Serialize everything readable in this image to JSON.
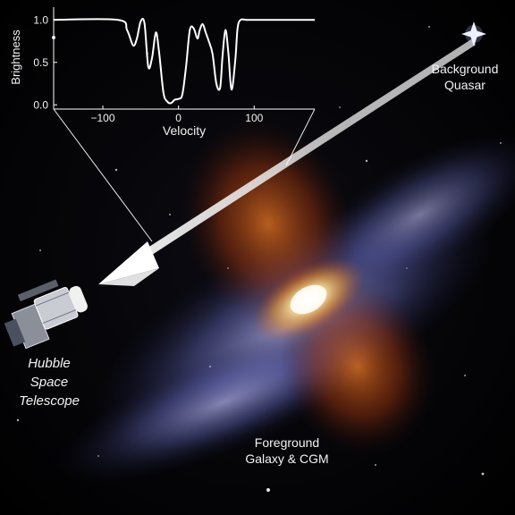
{
  "labels": {
    "quasar": [
      "Background",
      "Quasar"
    ],
    "galaxy": [
      "Foreground",
      "Galaxy & CGM"
    ],
    "telescope": [
      "Hubble",
      "Space",
      "Telescope"
    ]
  },
  "chart_data": {
    "type": "line",
    "xlabel": "Velocity",
    "ylabel": "Brightness",
    "xlim": [
      -165,
      180
    ],
    "ylim": [
      -0.05,
      1.15
    ],
    "x_ticks": [
      -100,
      0,
      100
    ],
    "x_tick_labels": [
      "−100",
      "0",
      "100"
    ],
    "y_ticks": [
      0.0,
      0.5,
      1.0
    ],
    "y_tick_labels": [
      "0.0",
      "0.5",
      "1.0"
    ],
    "grid": false,
    "line_color": "#ffffff",
    "series": [
      {
        "x": [
          -165,
          -80,
          -68,
          -60,
          -55,
          -50,
          -45,
          -40,
          -35,
          -30,
          -26,
          -20,
          -15,
          -10,
          -5,
          0,
          5,
          10,
          15,
          20,
          25,
          28,
          32,
          36,
          40,
          45,
          50,
          55,
          58,
          62,
          66,
          70,
          75,
          78,
          82,
          90,
          100,
          180
        ],
        "y": [
          1.0,
          1.0,
          0.88,
          0.7,
          0.78,
          0.98,
          0.96,
          0.45,
          0.55,
          0.85,
          0.65,
          0.15,
          0.04,
          0.02,
          0.06,
          0.07,
          0.12,
          0.45,
          0.88,
          0.9,
          0.78,
          0.88,
          0.95,
          0.85,
          0.75,
          0.6,
          0.25,
          0.2,
          0.55,
          0.88,
          0.6,
          0.18,
          0.52,
          0.9,
          1.0,
          1.0,
          1.0,
          1.0
        ]
      }
    ]
  },
  "colors": {
    "background": "#000000",
    "text": "#f2f2f2",
    "galaxy_core": "#fff6c8",
    "galaxy_outflow": "#e06a1a",
    "galaxy_disk": "#7a86d8",
    "quasar_star": "#e9ecff",
    "sightline_arrow": "#ffffff"
  }
}
